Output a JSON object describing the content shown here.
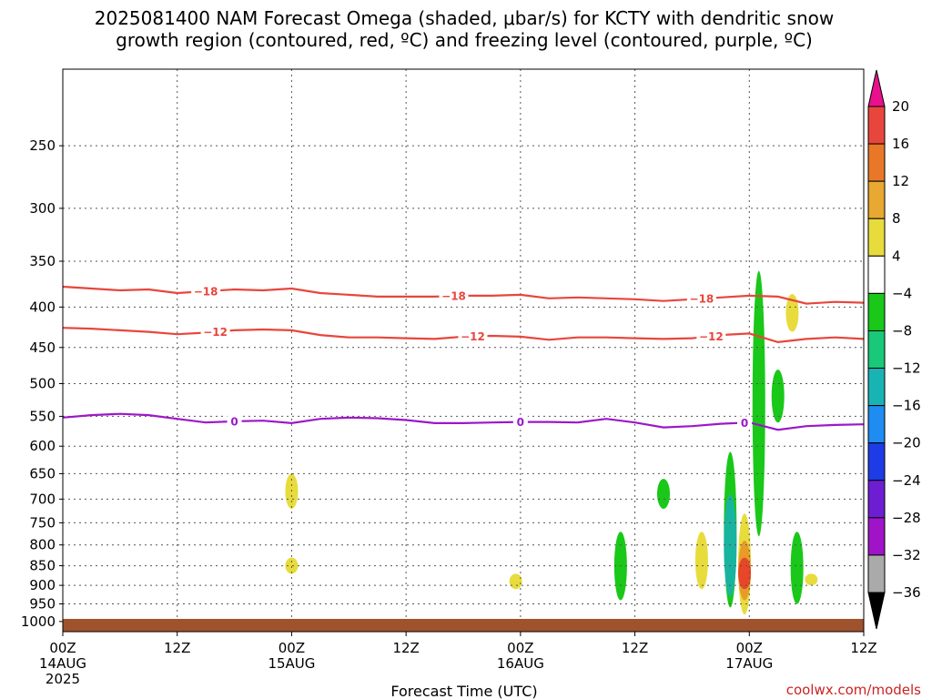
{
  "chart_data": {
    "type": "heatmap",
    "title_lines": [
      "2025081400 NAM Forecast Omega (shaded, μbar/s) for KCTY with dendritic snow",
      "growth region (contoured, red, ºC) and freezing level (contoured, purple, ºC)"
    ],
    "xlabel": "Forecast Time (UTC)",
    "ylabel": "",
    "y_scale": "log",
    "ylim": [
      1030,
      200
    ],
    "xlim": [
      "2025-08-14T00:00Z",
      "2025-08-17T12:00Z"
    ],
    "grid": true,
    "x_ticks": [
      {
        "t": "2025-08-14T00:00Z",
        "lines": [
          "00Z",
          "14AUG",
          "2025"
        ]
      },
      {
        "t": "2025-08-14T12:00Z",
        "lines": [
          "12Z"
        ]
      },
      {
        "t": "2025-08-15T00:00Z",
        "lines": [
          "00Z",
          "15AUG"
        ]
      },
      {
        "t": "2025-08-15T12:00Z",
        "lines": [
          "12Z"
        ]
      },
      {
        "t": "2025-08-16T00:00Z",
        "lines": [
          "00Z",
          "16AUG"
        ]
      },
      {
        "t": "2025-08-16T12:00Z",
        "lines": [
          "12Z"
        ]
      },
      {
        "t": "2025-08-17T00:00Z",
        "lines": [
          "00Z",
          "17AUG"
        ]
      },
      {
        "t": "2025-08-17T12:00Z",
        "lines": [
          "12Z"
        ]
      }
    ],
    "y_ticks": [
      250,
      300,
      350,
      400,
      450,
      500,
      550,
      600,
      650,
      700,
      750,
      800,
      850,
      900,
      950,
      1000
    ],
    "contours": [
      {
        "name": "-18",
        "color": "#e8463c",
        "label_at": [
          "2025-08-14T15:00Z",
          "2025-08-15T17:00Z",
          "2025-08-16T19:00Z"
        ],
        "points": [
          [
            "2025-08-14T00:00Z",
            377
          ],
          [
            "2025-08-14T03:00Z",
            379
          ],
          [
            "2025-08-14T06:00Z",
            381
          ],
          [
            "2025-08-14T09:00Z",
            380
          ],
          [
            "2025-08-14T12:00Z",
            384
          ],
          [
            "2025-08-14T15:00Z",
            382
          ],
          [
            "2025-08-14T18:00Z",
            380
          ],
          [
            "2025-08-14T21:00Z",
            381
          ],
          [
            "2025-08-15T00:00Z",
            379
          ],
          [
            "2025-08-15T03:00Z",
            384
          ],
          [
            "2025-08-15T06:00Z",
            386
          ],
          [
            "2025-08-15T09:00Z",
            388
          ],
          [
            "2025-08-15T12:00Z",
            388
          ],
          [
            "2025-08-15T15:00Z",
            388
          ],
          [
            "2025-08-15T18:00Z",
            387
          ],
          [
            "2025-08-15T21:00Z",
            387
          ],
          [
            "2025-08-16T00:00Z",
            386
          ],
          [
            "2025-08-16T03:00Z",
            390
          ],
          [
            "2025-08-16T06:00Z",
            389
          ],
          [
            "2025-08-16T09:00Z",
            390
          ],
          [
            "2025-08-16T12:00Z",
            391
          ],
          [
            "2025-08-16T15:00Z",
            393
          ],
          [
            "2025-08-16T18:00Z",
            391
          ],
          [
            "2025-08-16T21:00Z",
            389
          ],
          [
            "2025-08-17T00:00Z",
            387
          ],
          [
            "2025-08-17T03:00Z",
            388
          ],
          [
            "2025-08-17T06:00Z",
            396
          ],
          [
            "2025-08-17T09:00Z",
            394
          ],
          [
            "2025-08-17T12:00Z",
            395
          ]
        ]
      },
      {
        "name": "-12",
        "color": "#e8463c",
        "label_at": [
          "2025-08-14T16:00Z",
          "2025-08-15T19:00Z",
          "2025-08-16T20:00Z"
        ],
        "points": [
          [
            "2025-08-14T00:00Z",
            425
          ],
          [
            "2025-08-14T03:00Z",
            426
          ],
          [
            "2025-08-14T06:00Z",
            428
          ],
          [
            "2025-08-14T09:00Z",
            430
          ],
          [
            "2025-08-14T12:00Z",
            433
          ],
          [
            "2025-08-14T15:00Z",
            431
          ],
          [
            "2025-08-14T18:00Z",
            428
          ],
          [
            "2025-08-14T21:00Z",
            427
          ],
          [
            "2025-08-15T00:00Z",
            428
          ],
          [
            "2025-08-15T03:00Z",
            434
          ],
          [
            "2025-08-15T06:00Z",
            437
          ],
          [
            "2025-08-15T09:00Z",
            437
          ],
          [
            "2025-08-15T12:00Z",
            438
          ],
          [
            "2025-08-15T15:00Z",
            439
          ],
          [
            "2025-08-15T18:00Z",
            436
          ],
          [
            "2025-08-15T21:00Z",
            435
          ],
          [
            "2025-08-16T00:00Z",
            436
          ],
          [
            "2025-08-16T03:00Z",
            440
          ],
          [
            "2025-08-16T06:00Z",
            437
          ],
          [
            "2025-08-16T09:00Z",
            437
          ],
          [
            "2025-08-16T12:00Z",
            438
          ],
          [
            "2025-08-16T15:00Z",
            439
          ],
          [
            "2025-08-16T18:00Z",
            438
          ],
          [
            "2025-08-16T21:00Z",
            434
          ],
          [
            "2025-08-17T00:00Z",
            432
          ],
          [
            "2025-08-17T03:00Z",
            443
          ],
          [
            "2025-08-17T06:00Z",
            439
          ],
          [
            "2025-08-17T09:00Z",
            437
          ],
          [
            "2025-08-17T12:00Z",
            439
          ]
        ]
      },
      {
        "name": "0",
        "color": "#9c18c8",
        "label_at": [
          "2025-08-14T18:00Z",
          "2025-08-16T00:00Z",
          "2025-08-16T23:30Z"
        ],
        "points": [
          [
            "2025-08-14T00:00Z",
            552
          ],
          [
            "2025-08-14T03:00Z",
            548
          ],
          [
            "2025-08-14T06:00Z",
            546
          ],
          [
            "2025-08-14T09:00Z",
            548
          ],
          [
            "2025-08-14T12:00Z",
            554
          ],
          [
            "2025-08-14T15:00Z",
            560
          ],
          [
            "2025-08-14T18:00Z",
            558
          ],
          [
            "2025-08-14T21:00Z",
            557
          ],
          [
            "2025-08-15T00:00Z",
            561
          ],
          [
            "2025-08-15T03:00Z",
            554
          ],
          [
            "2025-08-15T06:00Z",
            552
          ],
          [
            "2025-08-15T09:00Z",
            553
          ],
          [
            "2025-08-15T12:00Z",
            556
          ],
          [
            "2025-08-15T15:00Z",
            561
          ],
          [
            "2025-08-15T18:00Z",
            561
          ],
          [
            "2025-08-15T21:00Z",
            560
          ],
          [
            "2025-08-16T00:00Z",
            559
          ],
          [
            "2025-08-16T03:00Z",
            559
          ],
          [
            "2025-08-16T06:00Z",
            560
          ],
          [
            "2025-08-16T09:00Z",
            554
          ],
          [
            "2025-08-16T12:00Z",
            560
          ],
          [
            "2025-08-16T15:00Z",
            568
          ],
          [
            "2025-08-16T18:00Z",
            566
          ],
          [
            "2025-08-16T21:00Z",
            562
          ],
          [
            "2025-08-17T00:00Z",
            560
          ],
          [
            "2025-08-17T03:00Z",
            572
          ],
          [
            "2025-08-17T06:00Z",
            566
          ],
          [
            "2025-08-17T09:00Z",
            564
          ],
          [
            "2025-08-17T12:00Z",
            563
          ]
        ]
      }
    ],
    "shaded_regions": [
      {
        "name": "omega-shade-green-1",
        "color": "#19c819",
        "value": -6,
        "t_center": "2025-08-16T10:30Z",
        "p_range": [
          940,
          770
        ]
      },
      {
        "name": "omega-shade-green-2",
        "color": "#19c819",
        "value": -6,
        "t_center": "2025-08-16T15:00Z",
        "p_range": [
          720,
          660
        ]
      },
      {
        "name": "omega-shade-green-3",
        "color": "#19c819",
        "value": -6,
        "t_center": "2025-08-16T22:00Z",
        "p_range": [
          960,
          610
        ]
      },
      {
        "name": "omega-shade-teal",
        "color": "#18b4a0",
        "value": -14,
        "t_center": "2025-08-16T22:00Z",
        "p_range": [
          930,
          690
        ]
      },
      {
        "name": "omega-shade-green-4",
        "color": "#19c819",
        "value": -6,
        "t_center": "2025-08-17T01:00Z",
        "p_range": [
          780,
          360
        ]
      },
      {
        "name": "omega-shade-green-5",
        "color": "#19c819",
        "value": -6,
        "t_center": "2025-08-17T03:00Z",
        "p_range": [
          560,
          480
        ]
      },
      {
        "name": "omega-shade-green-6",
        "color": "#19c819",
        "value": -6,
        "t_center": "2025-08-17T05:00Z",
        "p_range": [
          950,
          770
        ]
      },
      {
        "name": "omega-shade-yellow-1",
        "color": "#e8dc3c",
        "value": 5,
        "t_center": "2025-08-15T00:00Z",
        "p_range": [
          720,
          650
        ]
      },
      {
        "name": "omega-shade-yellow-2",
        "color": "#e8dc3c",
        "value": 5,
        "t_center": "2025-08-15T00:00Z",
        "p_range": [
          870,
          830
        ]
      },
      {
        "name": "omega-shade-yellow-3",
        "color": "#e8dc3c",
        "value": 5,
        "t_center": "2025-08-15T23:30Z",
        "p_range": [
          910,
          870
        ]
      },
      {
        "name": "omega-shade-yellow-4",
        "color": "#e8dc3c",
        "value": 5,
        "t_center": "2025-08-16T19:00Z",
        "p_range": [
          910,
          770
        ]
      },
      {
        "name": "omega-shade-yellow-5",
        "color": "#e8dc3c",
        "value": 5,
        "t_center": "2025-08-16T23:30Z",
        "p_range": [
          980,
          730
        ]
      },
      {
        "name": "omega-shade-orange",
        "color": "#e89c28",
        "value": 12,
        "t_center": "2025-08-16T23:30Z",
        "p_range": [
          940,
          790
        ]
      },
      {
        "name": "omega-shade-red",
        "color": "#e84628",
        "value": 17,
        "t_center": "2025-08-16T23:30Z",
        "p_range": [
          910,
          830
        ]
      },
      {
        "name": "omega-shade-yellow-6",
        "color": "#e8dc3c",
        "value": 5,
        "t_center": "2025-08-17T04:30Z",
        "p_range": [
          430,
          385
        ]
      },
      {
        "name": "omega-shade-yellow-7",
        "color": "#e8dc3c",
        "value": 5,
        "t_center": "2025-08-17T06:30Z",
        "p_range": [
          900,
          870
        ]
      }
    ],
    "ground_color": "#a0522d",
    "colorbar": {
      "ticks": [
        "20",
        "16",
        "12",
        "8",
        "4",
        "-4",
        "-8",
        "-12",
        "-16",
        "-20",
        "-24",
        "-28",
        "-32",
        "-36"
      ],
      "over_color": "#e8108c",
      "under_color": "#000000",
      "bands": [
        {
          "from": "20",
          "to": "16",
          "color": "#e8463c"
        },
        {
          "from": "16",
          "to": "12",
          "color": "#e87828"
        },
        {
          "from": "12",
          "to": "8",
          "color": "#e8a832"
        },
        {
          "from": "8",
          "to": "4",
          "color": "#e8dc3c"
        },
        {
          "from": "4",
          "to": "-4",
          "color": "#ffffff"
        },
        {
          "from": "-4",
          "to": "-8",
          "color": "#19c819"
        },
        {
          "from": "-8",
          "to": "-12",
          "color": "#19c878"
        },
        {
          "from": "-12",
          "to": "-16",
          "color": "#18b4b4"
        },
        {
          "from": "-16",
          "to": "-20",
          "color": "#1e8cf0"
        },
        {
          "from": "-20",
          "to": "-24",
          "color": "#1e3ce6"
        },
        {
          "from": "-24",
          "to": "-28",
          "color": "#6e1ed2"
        },
        {
          "from": "-28",
          "to": "-32",
          "color": "#a014c8"
        },
        {
          "from": "-32",
          "to": "-36",
          "color": "#aaaaaa"
        }
      ]
    },
    "credit": "coolwx.com/models",
    "credit_color": "#cc2222"
  }
}
